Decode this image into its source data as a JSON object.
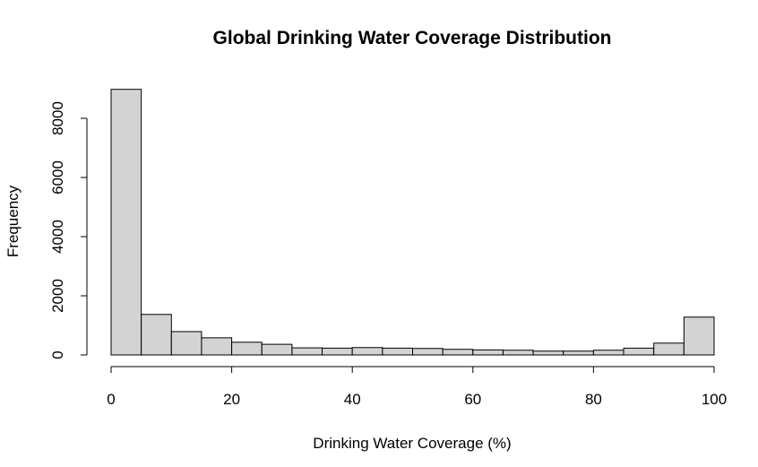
{
  "chart_data": {
    "type": "bar",
    "title": "Global Drinking Water Coverage Distribution",
    "xlabel": "Drinking Water Coverage (%)",
    "ylabel": "Frequency",
    "bin_edges": [
      0,
      5,
      10,
      15,
      20,
      25,
      30,
      35,
      40,
      45,
      50,
      55,
      60,
      65,
      70,
      75,
      80,
      85,
      90,
      95,
      100
    ],
    "values": [
      8980,
      1370,
      790,
      580,
      430,
      360,
      240,
      230,
      250,
      230,
      220,
      190,
      170,
      160,
      130,
      130,
      160,
      230,
      400,
      1280
    ],
    "xlim": [
      0,
      100
    ],
    "ylim": [
      0,
      8980
    ],
    "x_ticks": [
      0,
      20,
      40,
      60,
      80,
      100
    ],
    "y_ticks": [
      0,
      2000,
      4000,
      6000,
      8000
    ],
    "bar_color": "#d3d3d3",
    "grid": false
  }
}
